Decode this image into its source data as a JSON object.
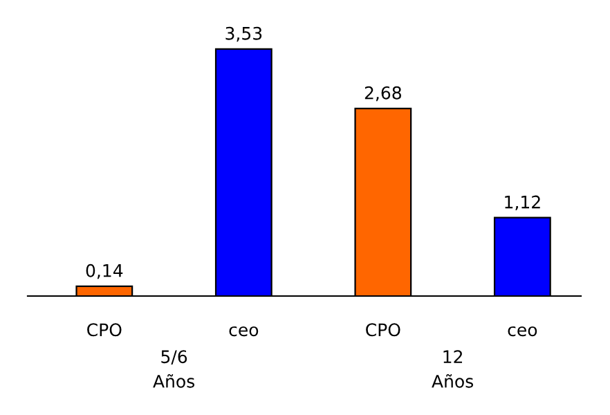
{
  "chart_data": {
    "type": "bar",
    "categories": [
      "CPO",
      "ceo",
      "CPO",
      "ceo"
    ],
    "values": [
      0.14,
      3.53,
      2.68,
      1.12
    ],
    "colors": [
      "#ff6600",
      "#0000ff",
      "#ff6600",
      "#0000ff"
    ],
    "value_labels": [
      "0,14",
      "3,53",
      "2,68",
      "1,12"
    ],
    "annotations": [
      "5/6\nAños",
      "12\nAños"
    ],
    "tick_labels": "x",
    "grid": false,
    "legend": false
  }
}
